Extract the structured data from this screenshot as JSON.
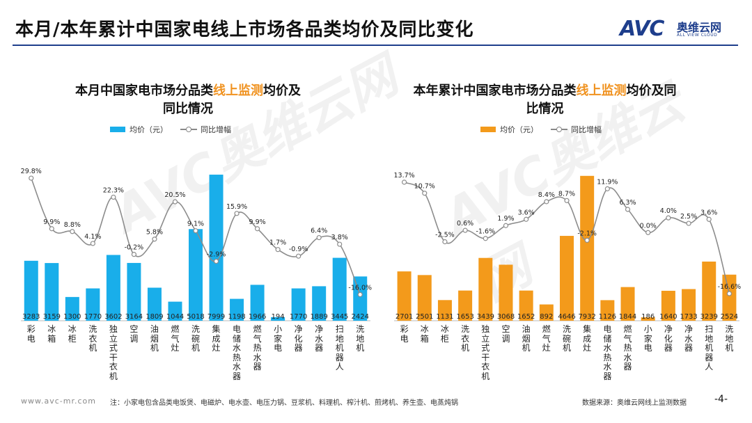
{
  "page": {
    "title": "本月/本年累计中国家电线上市场各品类均价及同比变化",
    "logo_mark": "AVC",
    "logo_cn": "奥维云网",
    "logo_en": "ALL VIEW CLOUD",
    "watermark_left": "AVC奥维云网",
    "watermark_right": "AVC奥维云网",
    "footer_url": "www.avc-mr.com",
    "footer_note": "注：小家电包含品类电饭煲、电磁炉、电水壶、电压力锅、豆浆机、料理机、榨汁机、煎烤机、养生壶、电蒸炖锅",
    "footer_source": "数据来源：奥维云网线上监测数据",
    "page_number": "-4-"
  },
  "colors": {
    "left_bar": "#19aeea",
    "right_bar": "#f39a1b",
    "line": "#8c8c8c",
    "accent": "#1e3e8c"
  },
  "chart_data": [
    {
      "type": "bar",
      "title_pre": "本月中国家电市场分品类",
      "title_hl": "线上监测",
      "title_post": "均价及",
      "title_line2": "同比情况",
      "legend_bar": "均价（元）",
      "legend_line": "同比增幅",
      "categories": [
        "彩电",
        "冰箱",
        "冰柜",
        "洗衣机",
        "独立式干衣机",
        "空调",
        "油烟机",
        "燃气灶",
        "洗碗机",
        "集成灶",
        "电储水热水器",
        "燃气热水器",
        "小家电",
        "净化器",
        "净水器",
        "扫地机器人",
        "洗地机"
      ],
      "series": [
        {
          "name": "均价（元）",
          "values": [
            3283,
            3159,
            1300,
            1770,
            3602,
            3164,
            1809,
            1044,
            5018,
            7999,
            1198,
            1966,
            194,
            1770,
            1889,
            3445,
            2424
          ]
        },
        {
          "name": "同比增幅",
          "values": [
            29.8,
            9.9,
            8.8,
            4.1,
            22.3,
            -0.2,
            5.8,
            20.5,
            9.1,
            -2.9,
            15.9,
            9.9,
            1.7,
            -0.9,
            6.4,
            3.8,
            -16.0
          ]
        }
      ],
      "value_labels": [
        "3283",
        "3159",
        "1300",
        "1770",
        "3602",
        "3164",
        "1809",
        "1044",
        "5018",
        "7999",
        "1198",
        "1966",
        "194",
        "1770",
        "1889",
        "3445",
        "2424"
      ],
      "pct_labels": [
        "29.8%",
        "9.9%",
        "8.8%",
        "4.1%",
        "22.3%",
        "-0.2%",
        "5.8%",
        "20.5%",
        "9.1%",
        "-2.9%",
        "15.9%",
        "9.9%",
        "1.7%",
        "-0.9%",
        "6.4%",
        "3.8%",
        "-16.0%"
      ],
      "bar_ylim": [
        0,
        8000
      ],
      "line_ylim": [
        -20,
        32
      ]
    },
    {
      "type": "bar",
      "title_pre": "本年累计中国家电市场分品类",
      "title_hl": "线上监测",
      "title_post": "均价及同",
      "title_line2": "比情况",
      "legend_bar": "均价（元）",
      "legend_line": "同比增幅",
      "categories": [
        "彩电",
        "冰箱",
        "冰柜",
        "洗衣机",
        "独立式干衣机",
        "空调",
        "油烟机",
        "燃气灶",
        "洗碗机",
        "集成灶",
        "电储水热水器",
        "燃气热水器",
        "小家电",
        "净化器",
        "净水器",
        "扫地机器人",
        "洗地机"
      ],
      "series": [
        {
          "name": "均价（元）",
          "values": [
            2701,
            2501,
            1131,
            1653,
            3439,
            3068,
            1652,
            892,
            4646,
            7932,
            1126,
            1844,
            186,
            1640,
            1733,
            3239,
            2524
          ]
        },
        {
          "name": "同比增幅",
          "values": [
            13.7,
            10.7,
            -2.5,
            0.6,
            -1.6,
            1.9,
            3.6,
            8.4,
            8.7,
            -2.1,
            11.9,
            6.3,
            0.0,
            4.0,
            2.5,
            3.6,
            -16.6
          ]
        }
      ],
      "value_labels": [
        "2701",
        "2501",
        "1131",
        "1653",
        "3439",
        "3068",
        "1652",
        "892",
        "4646",
        "7932",
        "1126",
        "1844",
        "186",
        "1640",
        "1733",
        "3239",
        "2524"
      ],
      "pct_labels": [
        "13.7%",
        "10.7%",
        "-2.5%",
        "0.6%",
        "-1.6%",
        "1.9%",
        "3.6%",
        "8.4%",
        "8.7%",
        "-2.1%",
        "11.9%",
        "6.3%",
        "0.0%",
        "4.0%",
        "2.5%",
        "3.6%",
        "-16.6%"
      ],
      "bar_ylim": [
        0,
        8000
      ],
      "line_ylim": [
        -20,
        15
      ]
    }
  ]
}
